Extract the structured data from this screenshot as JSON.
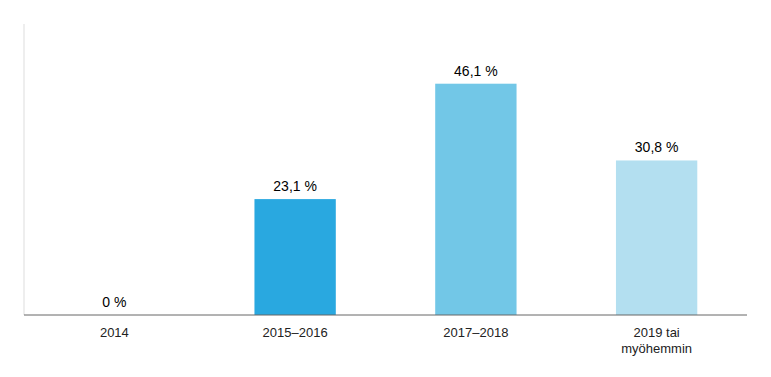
{
  "chart_data": {
    "type": "bar",
    "categories": [
      "2014",
      "2015–2016",
      "2017–2018",
      "2019 tai\nmyöhemmin"
    ],
    "values": [
      0.0,
      23.1,
      46.1,
      30.8
    ],
    "value_labels": [
      "0 %",
      "23,1 %",
      "46,1 %",
      "30,8 %"
    ],
    "colors": [
      "#ffffff",
      "#29a8e0",
      "#72c7e7",
      "#b3dff0"
    ],
    "ylim": [
      0,
      58
    ],
    "data_labels": true,
    "tick_labels": "x",
    "grid": false
  }
}
